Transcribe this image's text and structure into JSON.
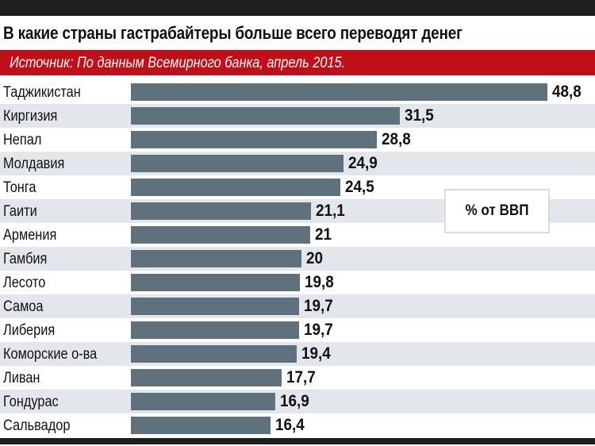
{
  "chart_data": {
    "type": "bar",
    "orientation": "horizontal",
    "title": "В какие страны гастрабайтеры больше всего переводят денег",
    "source": "Источник: По данным Всемирного банка, апрель 2015.",
    "unit_label": "% от ВВП",
    "categories": [
      "Таджикистан",
      "Киргизия",
      "Непал",
      "Молдавия",
      "Тонга",
      "Гаити",
      "Армения",
      "Гамбия",
      "Лесото",
      "Самоа",
      "Либерия",
      "Коморские о-ва",
      "Ливан",
      "Гондурас",
      "Сальвадор"
    ],
    "values": [
      48.8,
      31.5,
      28.8,
      24.9,
      24.5,
      21.1,
      21,
      20,
      19.8,
      19.7,
      19.7,
      19.4,
      17.7,
      16.9,
      16.4
    ],
    "value_labels": [
      "48,8",
      "31,5",
      "28,8",
      "24,9",
      "24,5",
      "21,1",
      "21",
      "20",
      "19,8",
      "19,7",
      "19,7",
      "19,4",
      "17,7",
      "16,9",
      "16,4"
    ],
    "xlim": [
      0,
      48.8
    ],
    "grid": false,
    "legend": "right",
    "colors": {
      "bar": "#5f717c",
      "source_band": "#c10f1a",
      "alt_row": "#e3e6ea"
    }
  }
}
